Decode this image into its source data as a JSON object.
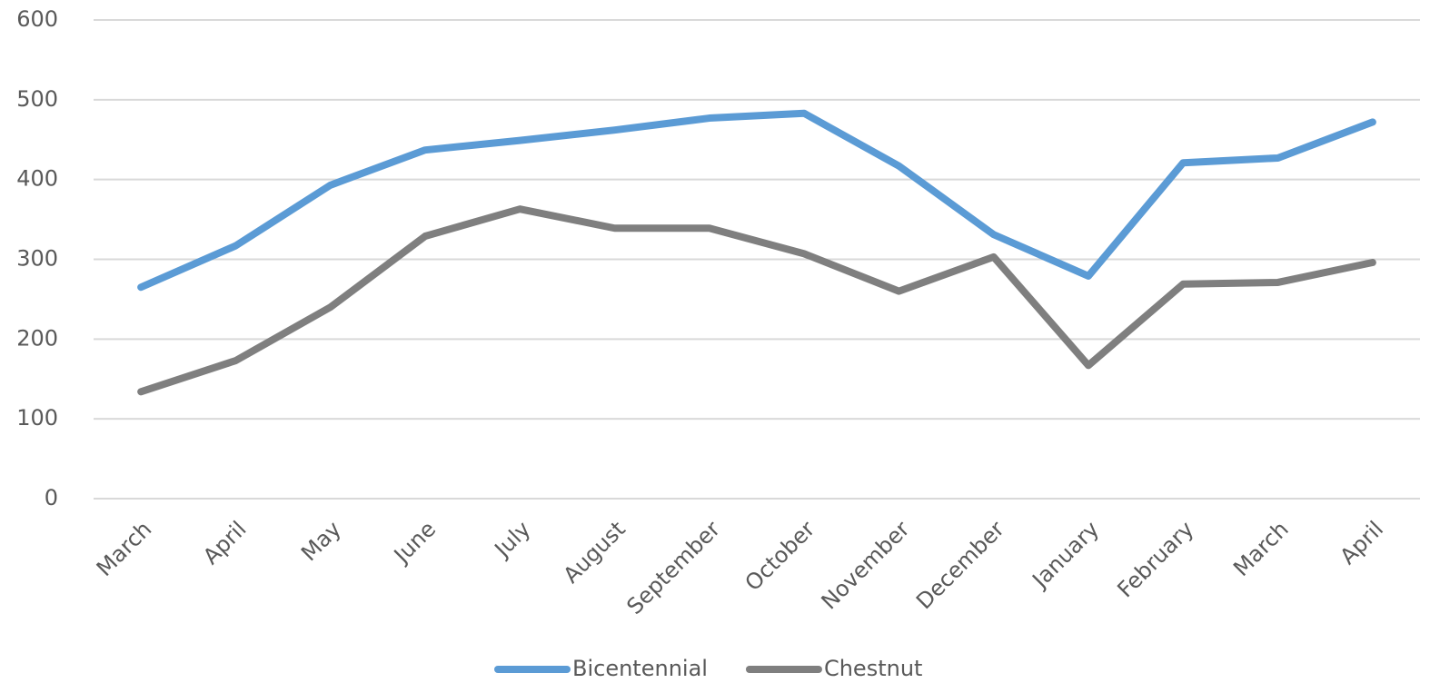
{
  "chart_data": {
    "type": "line",
    "categories": [
      "March",
      "April",
      "May",
      "June",
      "July",
      "August",
      "September",
      "October",
      "November",
      "December",
      "January",
      "February",
      "March",
      "April"
    ],
    "series": [
      {
        "name": "Bicentennial",
        "color": "#5b9bd5",
        "values": [
          265,
          317,
          393,
          437,
          449,
          462,
          477,
          483,
          417,
          331,
          279,
          421,
          427,
          472
        ]
      },
      {
        "name": "Chestnut",
        "color": "#7f7f7f",
        "values": [
          134,
          173,
          240,
          329,
          363,
          339,
          339,
          307,
          260,
          303,
          167,
          269,
          271,
          296
        ]
      }
    ],
    "ylim": [
      0,
      600
    ],
    "yticks": [
      0,
      100,
      200,
      300,
      400,
      500,
      600
    ],
    "grid": true,
    "legend": "bottom"
  }
}
